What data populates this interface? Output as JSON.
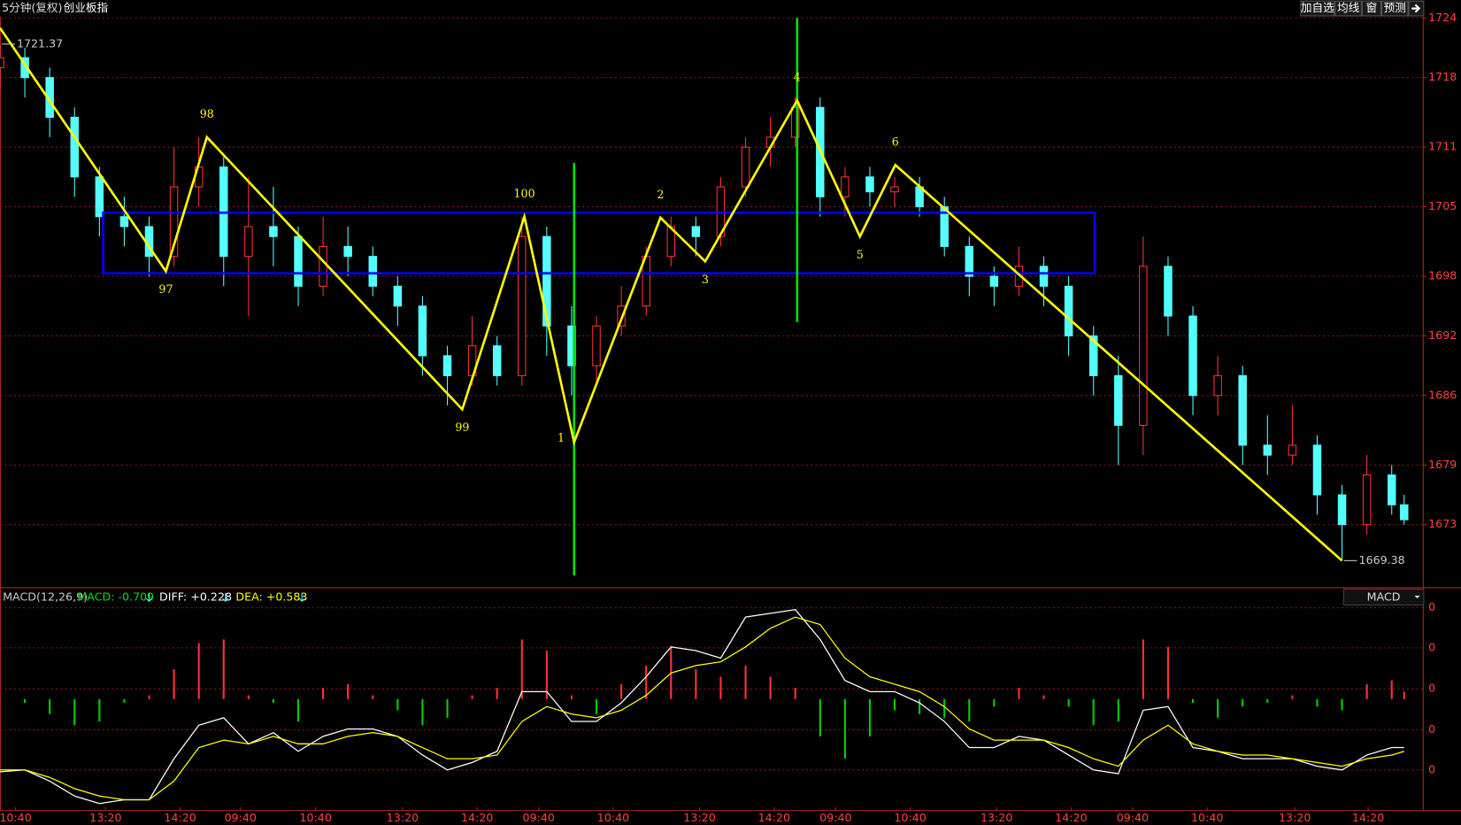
{
  "chart_data": {
    "type": "candlestick",
    "period": "5分钟(复权)",
    "title": "创业板指",
    "toolbar": [
      "加自选",
      "均线",
      "窗",
      "预测"
    ],
    "xlim": [
      0,
      229
    ],
    "ylim": [
      1666.7,
      1725.8
    ],
    "yticks": [
      1673,
      1679,
      1686,
      1692,
      1698,
      1705,
      1711,
      1718,
      1724
    ],
    "xticks": [
      {
        "value": 2.5,
        "label": "10:40"
      },
      {
        "value": 17,
        "label": "13:20"
      },
      {
        "value": 29,
        "label": "14:20"
      },
      {
        "value": 38.7,
        "label": "09:40"
      },
      {
        "value": 50.8,
        "label": "10:40"
      },
      {
        "value": 64.8,
        "label": "13:20"
      },
      {
        "value": 76.8,
        "label": "14:20"
      },
      {
        "value": 86.7,
        "label": "09:40"
      },
      {
        "value": 98.7,
        "label": "10:40"
      },
      {
        "value": 112.6,
        "label": "13:20"
      },
      {
        "value": 124.6,
        "label": "14:20"
      },
      {
        "value": 134.5,
        "label": "09:40"
      },
      {
        "value": 146.5,
        "label": "10:40"
      },
      {
        "value": 160.4,
        "label": "13:20"
      },
      {
        "value": 172.4,
        "label": "14:20"
      },
      {
        "value": 182.3,
        "label": "09:40"
      },
      {
        "value": 194.3,
        "label": "10:40"
      },
      {
        "value": 208.4,
        "label": "13:20"
      },
      {
        "value": 220.2,
        "label": "14:20"
      }
    ],
    "x": [
      0,
      4,
      8,
      12,
      16,
      20,
      24,
      28,
      32,
      36,
      40,
      44,
      48,
      52,
      56,
      60,
      64,
      68,
      72,
      76,
      80,
      84,
      88,
      92,
      96,
      100,
      104,
      108,
      112,
      116,
      120,
      124,
      128,
      132,
      136,
      140,
      144,
      148,
      152,
      156,
      160,
      164,
      168,
      172,
      176,
      180,
      184,
      188,
      192,
      196,
      200,
      204,
      208,
      212,
      216,
      220,
      224,
      226
    ],
    "ohlc": [
      [
        1719,
        1721.37,
        1717,
        1720
      ],
      [
        1720,
        1721,
        1716,
        1718
      ],
      [
        1718,
        1719,
        1712,
        1714
      ],
      [
        1714,
        1715,
        1706,
        1708
      ],
      [
        1708,
        1709,
        1702,
        1704
      ],
      [
        1704,
        1706,
        1701,
        1703
      ],
      [
        1703,
        1704,
        1698,
        1700
      ],
      [
        1700,
        1711,
        1699,
        1707
      ],
      [
        1707,
        1712,
        1705,
        1709
      ],
      [
        1709,
        1710,
        1697,
        1700
      ],
      [
        1700,
        1708,
        1694,
        1703
      ],
      [
        1703,
        1707,
        1699,
        1702
      ],
      [
        1702,
        1703,
        1695,
        1697
      ],
      [
        1697,
        1704,
        1696,
        1701
      ],
      [
        1701,
        1703,
        1698,
        1700
      ],
      [
        1700,
        1701,
        1696,
        1697
      ],
      [
        1697,
        1698,
        1693,
        1695
      ],
      [
        1695,
        1696,
        1688,
        1690
      ],
      [
        1690,
        1691,
        1685,
        1688
      ],
      [
        1688,
        1694,
        1687,
        1691
      ],
      [
        1691,
        1692,
        1687,
        1688
      ],
      [
        1688,
        1704,
        1687,
        1702
      ],
      [
        1702,
        1703,
        1690,
        1693
      ],
      [
        1693,
        1695,
        1686,
        1689
      ],
      [
        1689,
        1694,
        1687,
        1693
      ],
      [
        1693,
        1697,
        1692,
        1695
      ],
      [
        1695,
        1701,
        1694,
        1700
      ],
      [
        1700,
        1704,
        1699,
        1703
      ],
      [
        1703,
        1704,
        1700,
        1702
      ],
      [
        1702,
        1708,
        1701,
        1707
      ],
      [
        1707,
        1712,
        1706,
        1711
      ],
      [
        1711,
        1714,
        1709,
        1712
      ],
      [
        1712,
        1716,
        1711,
        1715
      ],
      [
        1715,
        1716,
        1704,
        1706
      ],
      [
        1706,
        1709,
        1704,
        1708
      ],
      [
        1708,
        1709,
        1705,
        1706.5
      ],
      [
        1706.5,
        1708,
        1705,
        1707
      ],
      [
        1707,
        1708,
        1704,
        1705
      ],
      [
        1705,
        1706,
        1700,
        1701
      ],
      [
        1701,
        1702,
        1696,
        1698
      ],
      [
        1698,
        1699,
        1695,
        1697
      ],
      [
        1697,
        1701,
        1696,
        1699
      ],
      [
        1699,
        1700,
        1695,
        1697
      ],
      [
        1697,
        1698,
        1690,
        1692
      ],
      [
        1692,
        1693,
        1686,
        1688
      ],
      [
        1688,
        1690,
        1679,
        1683
      ],
      [
        1683,
        1702,
        1680,
        1699
      ],
      [
        1699,
        1700,
        1692,
        1694
      ],
      [
        1694,
        1695,
        1684,
        1686
      ],
      [
        1686,
        1690,
        1684,
        1688
      ],
      [
        1688,
        1689,
        1679,
        1681
      ],
      [
        1681,
        1684,
        1678,
        1680
      ],
      [
        1680,
        1685,
        1679,
        1681
      ],
      [
        1681,
        1682,
        1674,
        1676
      ],
      [
        1676,
        1677,
        1669.38,
        1673
      ],
      [
        1673,
        1680,
        1672,
        1678
      ],
      [
        1678,
        1679,
        1674,
        1675
      ],
      [
        1675,
        1676,
        1673,
        1673.5
      ]
    ],
    "up_color": "#ff3232",
    "down_color": "#54ffff",
    "high_label": {
      "x": 0,
      "value": 1721.37,
      "label": "1721.37"
    },
    "low_label": {
      "x": 216,
      "value": 1669.38,
      "label": "1669.38"
    },
    "zigzag": {
      "color": "#ffff00",
      "x": [
        0,
        26.7,
        33.3,
        74.4,
        84.4,
        92.4,
        106.3,
        113.5,
        128.3,
        138.4,
        144.1,
        216
      ],
      "values": [
        1723,
        1698.5,
        1712,
        1684.6,
        1704,
        1681.3,
        1703.9,
        1699.5,
        1715.7,
        1702,
        1709.2,
        1669.38
      ],
      "labels": [
        null,
        "97",
        "98",
        "99",
        "100",
        "1",
        "2",
        "3",
        "4",
        "5",
        "6",
        null
      ]
    },
    "box": {
      "color": "#0000ff",
      "x": [
        16.6,
        176.2
      ],
      "y": [
        1698.3,
        1704.4
      ]
    },
    "vlines": [
      {
        "color": "#00e000",
        "x": 92.4,
        "y": [
          1709.4,
          1667.9
        ]
      },
      {
        "color": "#00e000",
        "x": 128.3,
        "y": [
          1724,
          1693.4
        ]
      }
    ],
    "indicator": {
      "name": "MACD(12,26,9)",
      "macd_label": "MACD: -0.709",
      "diff_label": "DIFF: +0.228",
      "dea_label": "DEA: +0.583",
      "selector": "MACD",
      "axis_labels": [
        "0",
        "0",
        "0",
        "0",
        "0"
      ],
      "ylim": [
        -3,
        2.5
      ],
      "histogram": [
        0,
        -0.1,
        -0.4,
        -0.7,
        -0.6,
        -0.1,
        0.1,
        0.8,
        1.5,
        1.6,
        0.1,
        -0.1,
        -0.6,
        0.3,
        0.4,
        0.1,
        -0.3,
        -0.7,
        -0.5,
        0.1,
        0.3,
        1.6,
        1.3,
        0.1,
        -0.4,
        0.4,
        0.9,
        1.4,
        0.8,
        0.6,
        0.9,
        0.6,
        0.3,
        -1.0,
        -1.6,
        -1.0,
        -0.3,
        -0.4,
        -0.5,
        -0.6,
        -0.2,
        0.3,
        0.1,
        -0.2,
        -0.7,
        -0.6,
        1.6,
        1.4,
        -0.1,
        -0.5,
        -0.2,
        -0.1,
        0.1,
        -0.2,
        -0.3,
        0.4,
        0.5,
        0.2
      ],
      "diff": [
        -1.95,
        -1.9,
        -2.2,
        -2.6,
        -2.8,
        -2.7,
        -2.7,
        -1.6,
        -0.7,
        -0.5,
        -1.2,
        -0.9,
        -1.4,
        -1.0,
        -0.8,
        -0.8,
        -1.0,
        -1.5,
        -1.9,
        -1.7,
        -1.4,
        0.2,
        0.2,
        -0.6,
        -0.6,
        -0.1,
        0.6,
        1.4,
        1.3,
        1.1,
        2.2,
        2.3,
        2.4,
        1.6,
        0.5,
        0.2,
        0.2,
        -0.1,
        -0.6,
        -1.3,
        -1.3,
        -1.0,
        -1.1,
        -1.5,
        -1.9,
        -2.0,
        -0.3,
        -0.2,
        -1.3,
        -1.4,
        -1.6,
        -1.6,
        -1.6,
        -1.8,
        -1.9,
        -1.5,
        -1.3,
        -1.3
      ],
      "dea": [
        -1.9,
        -1.9,
        -2.1,
        -2.4,
        -2.6,
        -2.7,
        -2.7,
        -2.2,
        -1.3,
        -1.1,
        -1.2,
        -1.0,
        -1.2,
        -1.2,
        -1.0,
        -0.9,
        -1.0,
        -1.3,
        -1.6,
        -1.6,
        -1.5,
        -0.6,
        -0.2,
        -0.4,
        -0.5,
        -0.3,
        0.1,
        0.7,
        0.9,
        1.0,
        1.4,
        1.9,
        2.2,
        2.0,
        1.1,
        0.6,
        0.4,
        0.2,
        -0.2,
        -0.8,
        -1.1,
        -1.1,
        -1.1,
        -1.3,
        -1.6,
        -1.8,
        -1.1,
        -0.7,
        -1.2,
        -1.4,
        -1.5,
        -1.5,
        -1.6,
        -1.7,
        -1.8,
        -1.6,
        -1.5,
        -1.4
      ],
      "diff_color": "#ffffff",
      "dea_color": "#ffff00",
      "pos_color": "#ff3232",
      "neg_color": "#00d000"
    }
  }
}
